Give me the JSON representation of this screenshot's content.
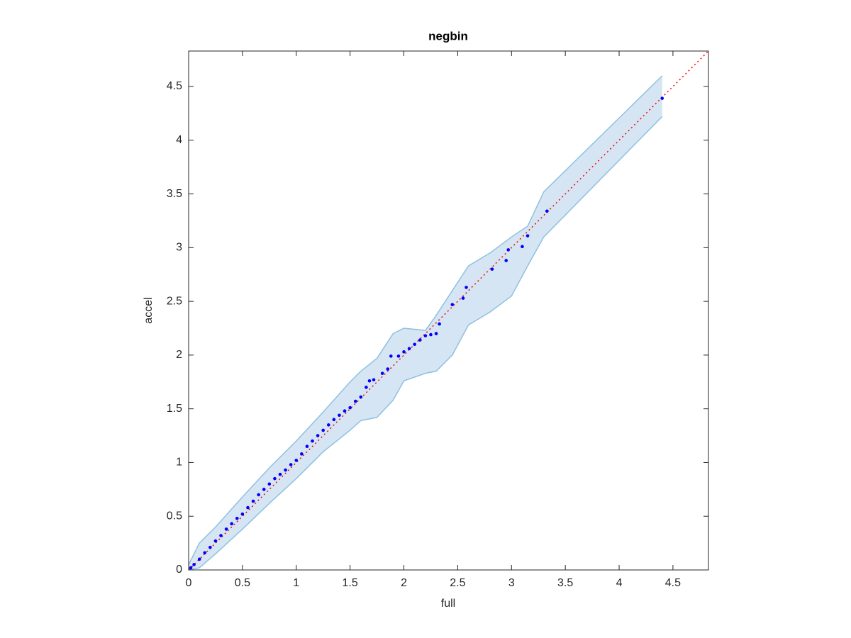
{
  "chart_data": {
    "type": "scatter",
    "title": "negbin",
    "x_label": "full",
    "y_label": "accel",
    "xlim": [
      0,
      4.83
    ],
    "ylim": [
      0,
      4.83
    ],
    "xticks": [
      0,
      0.5,
      1,
      1.5,
      2,
      2.5,
      3,
      3.5,
      4,
      4.5
    ],
    "yticks": [
      0,
      0.5,
      1,
      1.5,
      2,
      2.5,
      3,
      3.5,
      4,
      4.5
    ],
    "band": {
      "color": "#d5e5f3",
      "edge_color": "#8fc1e0",
      "x": [
        0,
        0.1,
        0.25,
        0.5,
        0.75,
        1.0,
        1.25,
        1.5,
        1.6,
        1.75,
        1.9,
        2.0,
        2.2,
        2.3,
        2.45,
        2.6,
        2.8,
        3.0,
        3.15,
        3.3,
        4.4
      ],
      "upper": [
        0.05,
        0.25,
        0.4,
        0.68,
        0.95,
        1.2,
        1.47,
        1.75,
        1.85,
        1.97,
        2.2,
        2.25,
        2.23,
        2.37,
        2.6,
        2.83,
        2.95,
        3.1,
        3.2,
        3.52,
        4.6
      ],
      "lower": [
        0,
        0.02,
        0.15,
        0.38,
        0.62,
        0.85,
        1.1,
        1.3,
        1.39,
        1.42,
        1.58,
        1.76,
        1.83,
        1.85,
        2.0,
        2.28,
        2.4,
        2.55,
        2.83,
        3.1,
        4.22
      ]
    },
    "reference": {
      "color": "#ff0000",
      "x": [
        0,
        4.83
      ],
      "y": [
        0,
        4.83
      ]
    },
    "points": {
      "color": "#0000ff",
      "x": [
        0.02,
        0.05,
        0.1,
        0.15,
        0.2,
        0.25,
        0.3,
        0.35,
        0.4,
        0.45,
        0.5,
        0.55,
        0.6,
        0.65,
        0.7,
        0.75,
        0.8,
        0.85,
        0.9,
        0.95,
        1.0,
        1.05,
        1.1,
        1.15,
        1.2,
        1.25,
        1.3,
        1.35,
        1.4,
        1.45,
        1.5,
        1.55,
        1.6,
        1.65,
        1.68,
        1.72,
        1.8,
        1.85,
        1.88,
        1.95,
        2.0,
        2.05,
        2.1,
        2.15,
        2.2,
        2.25,
        2.3,
        2.33,
        2.45,
        2.55,
        2.58,
        2.82,
        2.95,
        2.97,
        3.1,
        3.15,
        3.33,
        4.4
      ],
      "y": [
        0.02,
        0.05,
        0.1,
        0.16,
        0.21,
        0.27,
        0.32,
        0.38,
        0.43,
        0.48,
        0.52,
        0.58,
        0.64,
        0.7,
        0.75,
        0.8,
        0.85,
        0.89,
        0.93,
        0.98,
        1.02,
        1.08,
        1.15,
        1.2,
        1.25,
        1.3,
        1.35,
        1.4,
        1.44,
        1.48,
        1.51,
        1.57,
        1.61,
        1.7,
        1.76,
        1.77,
        1.83,
        1.87,
        1.99,
        1.99,
        2.03,
        2.06,
        2.1,
        2.14,
        2.18,
        2.19,
        2.2,
        2.29,
        2.47,
        2.53,
        2.63,
        2.8,
        2.88,
        2.98,
        3.01,
        3.11,
        3.34,
        4.39
      ]
    }
  }
}
